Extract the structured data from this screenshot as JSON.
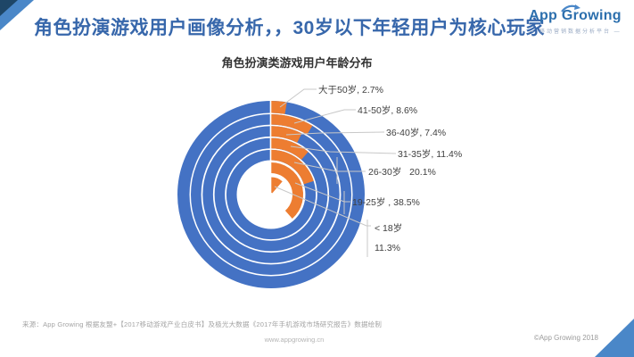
{
  "header": {
    "title": "角色扮演游戏用户画像分析，，30岁以下年轻用户为核心玩家",
    "logo": {
      "brand": "App Growing",
      "tagline": "— 移动营销数据分析平台 —"
    }
  },
  "chart": {
    "title": "角色扮演类游戏用户年龄分布"
  },
  "chart_data": {
    "type": "pie",
    "subtype": "concentric-ring-donut",
    "title": "角色扮演类游戏用户年龄分布",
    "unit": "percent",
    "ring_order": "outermost_to_innermost",
    "categories": [
      "大于50岁",
      "41-50岁",
      "36-40岁",
      "31-35岁",
      "26-30岁",
      "19-25岁",
      "<18岁"
    ],
    "values": [
      2.7,
      8.6,
      7.4,
      11.4,
      20.1,
      38.5,
      11.3
    ],
    "labels": [
      "大于50岁, 2.7%",
      "41-50岁, 8.6%",
      "36-40岁, 7.4%",
      "31-35岁, 11.4%",
      "26-30岁   20.1%",
      "19-25岁 , 38.5%",
      "< 18岁\n11.3%"
    ],
    "colors": {
      "arc": "#ED7D31",
      "ring_bg": "#4472C4",
      "leader_line": "#c8c8c8"
    },
    "legend_position": "right-labels-with-leader-lines",
    "grid": false
  },
  "footer": {
    "source": "来源：App Growing 根据友盟+【2017移动游戏产业白皮书】及极光大数据《2017年手机游戏市场研究报告》数据绘制",
    "website": "www.appgrowing.cn",
    "copyright": "©App Growing 2018"
  }
}
